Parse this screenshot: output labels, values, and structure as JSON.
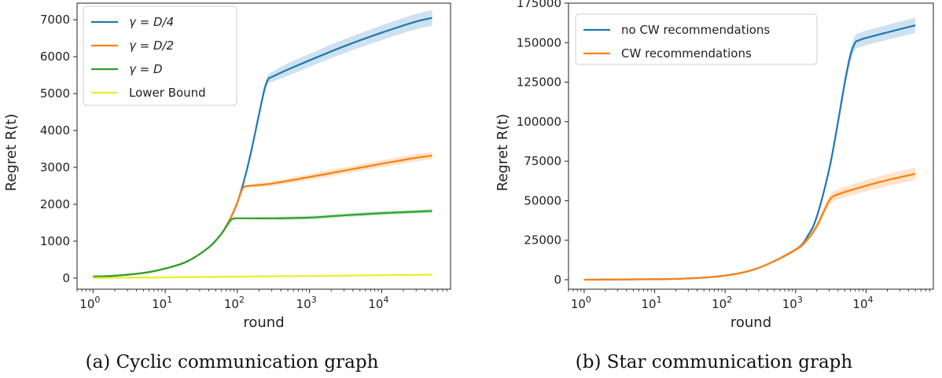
{
  "chart_data": [
    {
      "type": "line",
      "caption": "(a) Cyclic communication graph",
      "xlabel": "round",
      "ylabel": "Regret R(t)",
      "xscale": "log",
      "xlim": [
        0.6,
        90000
      ],
      "ylim": [
        -300,
        7450
      ],
      "xticks": [
        {
          "value": 1,
          "base": "10",
          "exp": "0"
        },
        {
          "value": 10,
          "base": "10",
          "exp": "1"
        },
        {
          "value": 100,
          "base": "10",
          "exp": "2"
        },
        {
          "value": 1000,
          "base": "10",
          "exp": "3"
        },
        {
          "value": 10000,
          "base": "10",
          "exp": "4"
        }
      ],
      "yticks": [
        0,
        1000,
        2000,
        3000,
        4000,
        5000,
        6000,
        7000
      ],
      "legend_position": "top-left",
      "series": [
        {
          "name": "γ = D/4",
          "color": "#1f77b4",
          "band": 0.03,
          "x": [
            1,
            2,
            5,
            10,
            20,
            40,
            60,
            80,
            100,
            130,
            160,
            200,
            240,
            270,
            300,
            500,
            1000,
            3000,
            10000,
            30000,
            50000
          ],
          "y": [
            40,
            65,
            140,
            260,
            450,
            830,
            1200,
            1620,
            2050,
            2800,
            3550,
            4450,
            5150,
            5400,
            5450,
            5650,
            5900,
            6280,
            6650,
            6950,
            7050
          ]
        },
        {
          "name": "γ = D/2",
          "color": "#ff7f0e",
          "band": 0.03,
          "x": [
            1,
            2,
            5,
            10,
            20,
            40,
            60,
            80,
            100,
            120,
            150,
            300,
            1000,
            3000,
            10000,
            30000,
            50000
          ],
          "y": [
            40,
            65,
            140,
            260,
            450,
            830,
            1200,
            1620,
            2050,
            2440,
            2500,
            2560,
            2740,
            2910,
            3100,
            3260,
            3320
          ]
        },
        {
          "name": "γ = D",
          "color": "#2ca02c",
          "band": 0.03,
          "x": [
            1,
            2,
            5,
            10,
            20,
            40,
            60,
            80,
            90,
            100,
            300,
            1000,
            3000,
            10000,
            30000,
            50000
          ],
          "y": [
            40,
            65,
            140,
            260,
            450,
            830,
            1200,
            1560,
            1610,
            1620,
            1620,
            1640,
            1700,
            1760,
            1800,
            1820
          ]
        },
        {
          "name": "Lower Bound",
          "color": "#e8f020",
          "band": 0,
          "x": [
            1,
            10,
            100,
            1000,
            10000,
            50000
          ],
          "y": [
            5,
            20,
            40,
            58,
            78,
            95
          ]
        }
      ]
    },
    {
      "type": "line",
      "caption": "(b) Star communication graph",
      "xlabel": "round",
      "ylabel": "Regret R(t)",
      "xscale": "log",
      "xlim": [
        0.6,
        90000
      ],
      "ylim": [
        -6000,
        175000
      ],
      "xticks": [
        {
          "value": 1,
          "base": "10",
          "exp": "0"
        },
        {
          "value": 10,
          "base": "10",
          "exp": "1"
        },
        {
          "value": 100,
          "base": "10",
          "exp": "2"
        },
        {
          "value": 1000,
          "base": "10",
          "exp": "3"
        },
        {
          "value": 10000,
          "base": "10",
          "exp": "4"
        }
      ],
      "yticks": [
        0,
        25000,
        50000,
        75000,
        100000,
        125000,
        150000,
        175000
      ],
      "legend_position": "top-left",
      "series": [
        {
          "name": "no CW recommendations",
          "color": "#1f77b4",
          "band": 0.03,
          "x": [
            1,
            10,
            30,
            100,
            300,
            1000,
            1500,
            2000,
            3000,
            4000,
            5000,
            6000,
            7000,
            8000,
            10000,
            20000,
            50000
          ],
          "y": [
            0,
            300,
            800,
            2600,
            7500,
            19000,
            28000,
            40000,
            70000,
            100000,
            125000,
            142000,
            150000,
            151500,
            153000,
            156500,
            161000
          ]
        },
        {
          "name": "CW recommendations",
          "color": "#ff7f0e",
          "band": 0.06,
          "x": [
            1,
            10,
            30,
            100,
            300,
            1000,
            1500,
            2000,
            2500,
            3000,
            3500,
            5000,
            10000,
            20000,
            50000
          ],
          "y": [
            0,
            300,
            800,
            2600,
            7500,
            19000,
            26000,
            34000,
            43000,
            50000,
            53000,
            55500,
            59500,
            63000,
            67000
          ]
        }
      ]
    }
  ]
}
